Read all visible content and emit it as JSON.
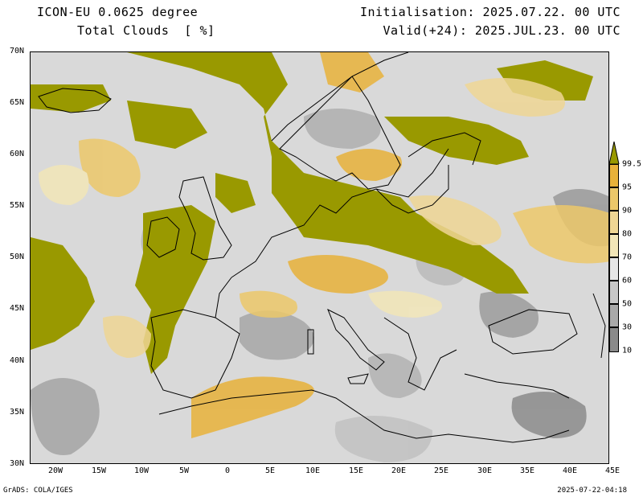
{
  "header": {
    "model": "ICON-EU 0.0625 degree",
    "variable": "Total Clouds  [ %]",
    "init": "Initialisation: 2025.07.22. 00 UTC",
    "valid": "Valid(+24): 2025.JUL.23. 00 UTC"
  },
  "axes": {
    "lat_labels": [
      "70N",
      "65N",
      "60N",
      "55N",
      "50N",
      "45N",
      "40N",
      "35N",
      "30N"
    ],
    "lon_labels": [
      "20W",
      "15W",
      "10W",
      "5W",
      "0",
      "5E",
      "10E",
      "15E",
      "20E",
      "25E",
      "30E",
      "35E",
      "40E",
      "45E"
    ]
  },
  "colorbar": {
    "levels": [
      "99.5",
      "95",
      "90",
      "80",
      "70",
      "60",
      "50",
      "30",
      "10"
    ],
    "colors": {
      "above_99_5": "#999900",
      "95_99_5": "#e8b23a",
      "90_95": "#ecc86a",
      "80_90": "#efd694",
      "70_80": "#f2e6b8",
      "60_70": "#e6e6e6",
      "50_60": "#c8c8c8",
      "30_50": "#a9a9a9",
      "10_30": "#8a8a8a",
      "below_10": "#6e6e6e"
    }
  },
  "footer": {
    "left": "GrADS: COLA/IGES",
    "right": "2025-07-22-04:18"
  }
}
